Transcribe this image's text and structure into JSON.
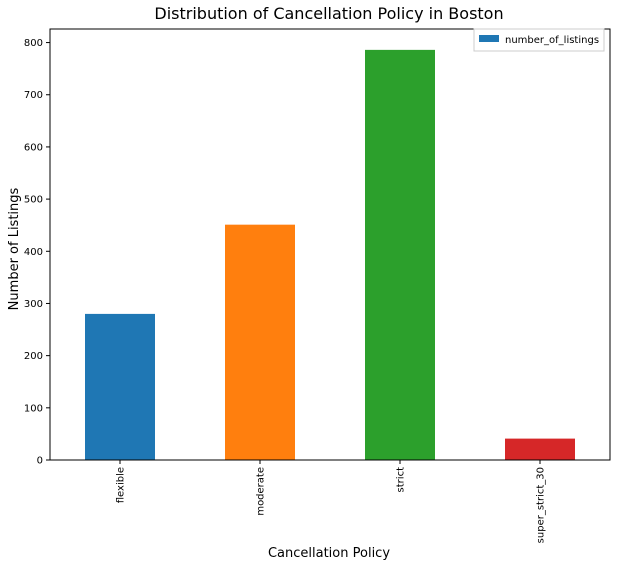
{
  "chart_data": {
    "type": "bar",
    "title": "Distribution of Cancellation Policy in Boston",
    "xlabel": "Cancellation Policy",
    "ylabel": "Number of Listings",
    "categories": [
      "flexible",
      "moderate",
      "strict",
      "super_strict_30"
    ],
    "series": [
      {
        "name": "number_of_listings",
        "values": [
          280,
          451,
          786,
          41
        ]
      }
    ],
    "bar_colors": [
      "#1f77b4",
      "#ff7f0e",
      "#2ca02c",
      "#d62728"
    ],
    "legend_color": "#1f77b4",
    "ylim": [
      0,
      826
    ],
    "yticks": [
      0,
      100,
      200,
      300,
      400,
      500,
      600,
      700,
      800
    ],
    "grid": false,
    "legend_position": "top-right",
    "xtick_rotation": "vertical"
  }
}
